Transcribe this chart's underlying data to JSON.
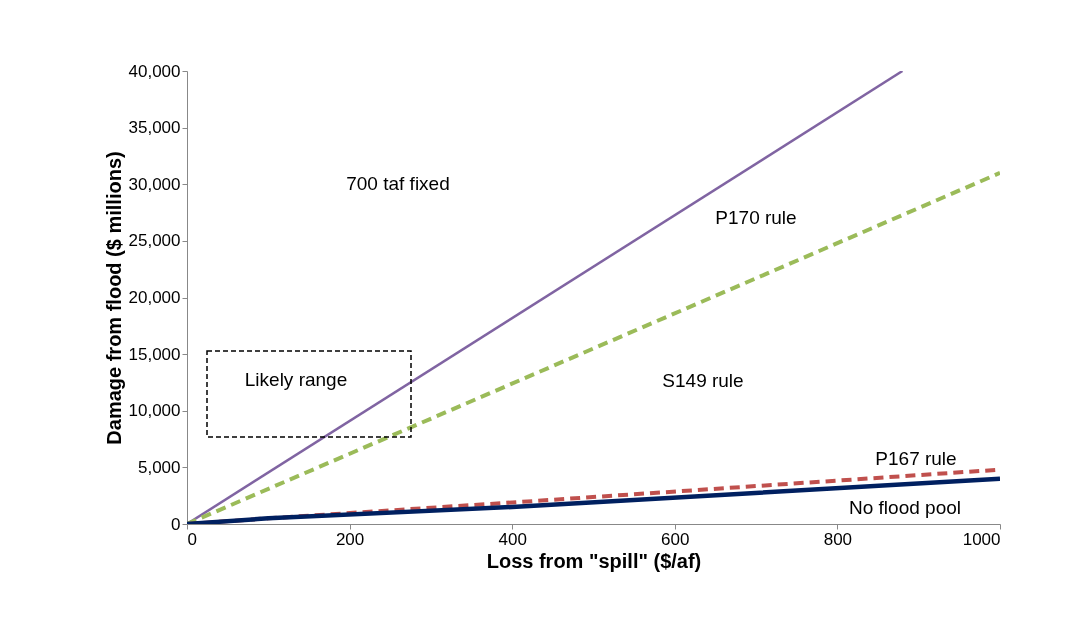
{
  "chart_data": {
    "type": "line",
    "xlabel": "Loss from \"spill\" ($/af)",
    "ylabel": "Damage from flood ($ millions)",
    "xlim": [
      0,
      1000
    ],
    "xticks": [
      0,
      200,
      400,
      600,
      800,
      1000
    ],
    "ylim": [
      0,
      40000
    ],
    "yticks": [
      {
        "value": 0,
        "label": "0"
      },
      {
        "value": 5000,
        "label": "5,000"
      },
      {
        "value": 10000,
        "label": "10,000"
      },
      {
        "value": 15000,
        "label": "15,000"
      },
      {
        "value": 20000,
        "label": "20,000"
      },
      {
        "value": 25000,
        "label": "25,000"
      },
      {
        "value": 30000,
        "label": "30,000"
      },
      {
        "value": 35000,
        "label": "35,000"
      },
      {
        "value": 40000,
        "label": "40,000"
      }
    ],
    "grid": false,
    "series": [
      {
        "color": "#8064a2",
        "line_style": "solid",
        "x": [
          0,
          880
        ],
        "values": [
          0,
          40000
        ]
      },
      {
        "color": "#9bbb59",
        "line_style": "dashed",
        "x": [
          0,
          1000
        ],
        "values": [
          0,
          31000
        ]
      },
      {
        "color": "#c0504d",
        "line_style": "dashed",
        "x": [
          0,
          100,
          400,
          1000
        ],
        "values": [
          0,
          500,
          1900,
          4800
        ]
      },
      {
        "color": "#002060",
        "line_style": "solid",
        "x": [
          0,
          100,
          400,
          1000
        ],
        "values": [
          0,
          500,
          1500,
          4000
        ]
      }
    ],
    "annotations": [
      "700 taf fixed",
      "P170 rule",
      "Likely range",
      "S149 rule",
      "P167 rule",
      "No flood pool"
    ]
  }
}
